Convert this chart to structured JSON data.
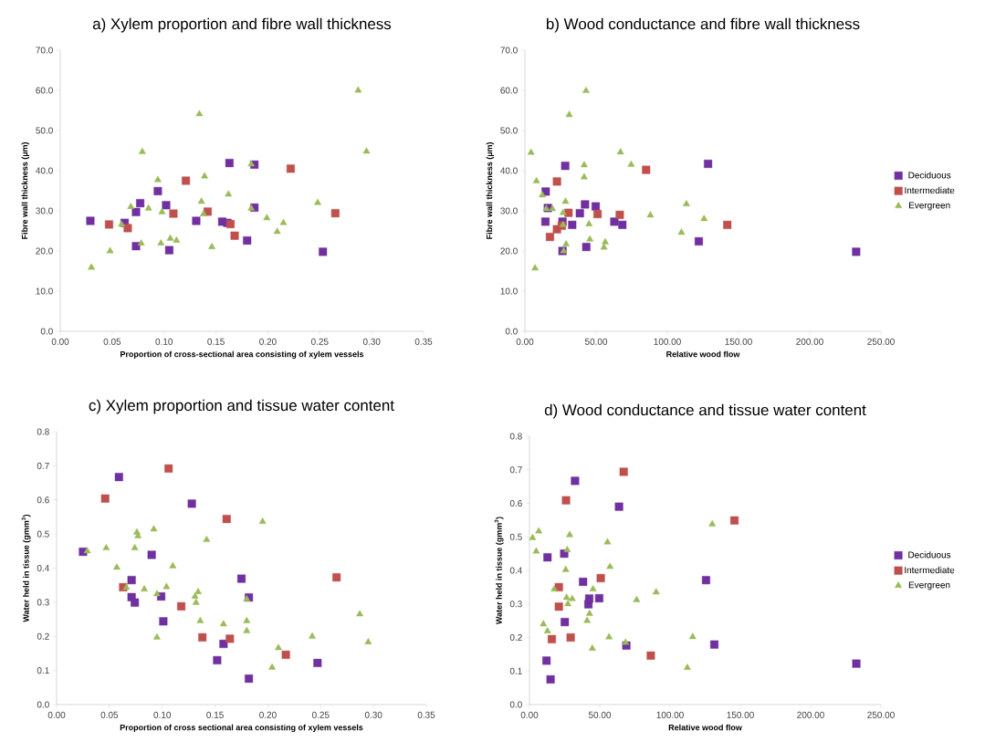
{
  "chart_data": [
    {
      "type": "scatter",
      "title": "a) Xylem proportion and fibre wall thickness",
      "xlabel": "Proportion of cross-sectional area consisting of xylem vessels",
      "ylabel": "Fibre wall thickness (µm)",
      "xlim": [
        0,
        0.35
      ],
      "ylim": [
        0,
        70
      ],
      "xticks": [
        {
          "value": 0,
          "label": "0.00"
        },
        {
          "value": 0.05,
          "label": "0.05"
        },
        {
          "value": 0.1,
          "label": "0.10"
        },
        {
          "value": 0.15,
          "label": "0.15"
        },
        {
          "value": 0.2,
          "label": "0.20"
        },
        {
          "value": 0.25,
          "label": "0.25"
        },
        {
          "value": 0.3,
          "label": "0.30"
        },
        {
          "value": 0.35,
          "label": "0.35"
        }
      ],
      "yticks": [
        {
          "value": 0,
          "label": "0.0"
        },
        {
          "value": 10,
          "label": "10.0"
        },
        {
          "value": 20,
          "label": "20.0"
        },
        {
          "value": 30,
          "label": "30.0"
        },
        {
          "value": 40,
          "label": "40.0"
        },
        {
          "value": 50,
          "label": "50.0"
        },
        {
          "value": 60,
          "label": "60.0"
        },
        {
          "value": 70,
          "label": "70.0"
        }
      ],
      "series": [
        {
          "color": "#7030a0",
          "marker": "square",
          "x": [
            0.029,
            0.062,
            0.073,
            0.077,
            0.073,
            0.094,
            0.102,
            0.105,
            0.131,
            0.156,
            0.163,
            0.161,
            0.18,
            0.187,
            0.187,
            0.253
          ],
          "values": [
            27.5,
            27.0,
            29.7,
            31.9,
            21.2,
            34.9,
            31.4,
            20.2,
            27.5,
            27.3,
            41.9,
            27.0,
            22.6,
            41.5,
            30.8,
            19.8
          ]
        },
        {
          "color": "#c0504d",
          "marker": "square",
          "x": [
            0.047,
            0.065,
            0.121,
            0.109,
            0.142,
            0.164,
            0.168,
            0.222,
            0.265
          ],
          "values": [
            26.6,
            25.7,
            37.5,
            29.3,
            29.8,
            26.7,
            23.8,
            40.5,
            29.4
          ]
        },
        {
          "color": "#9bbb59",
          "marker": "triangle",
          "x": [
            0.03,
            0.048,
            0.059,
            0.068,
            0.079,
            0.078,
            0.085,
            0.094,
            0.097,
            0.098,
            0.106,
            0.112,
            0.134,
            0.136,
            0.139,
            0.138,
            0.146,
            0.162,
            0.184,
            0.184,
            0.199,
            0.209,
            0.215,
            0.248,
            0.287,
            0.295
          ],
          "values": [
            15.9,
            20.0,
            26.6,
            31.0,
            44.7,
            21.9,
            30.6,
            37.7,
            21.9,
            29.7,
            23.1,
            22.6,
            54.1,
            32.3,
            38.6,
            29.2,
            21.0,
            34.1,
            41.6,
            30.6,
            28.2,
            24.8,
            27.0,
            32.0,
            60.0,
            44.8
          ]
        }
      ]
    },
    {
      "type": "scatter",
      "title": "b) Wood conductance and fibre wall thickness",
      "xlabel": "Relative wood flow",
      "ylabel": "Fibre wall thickness (µm)",
      "legend": "right",
      "xlim": [
        0,
        250
      ],
      "ylim": [
        0,
        70
      ],
      "xticks": [
        {
          "value": 0,
          "label": "0.00"
        },
        {
          "value": 50,
          "label": "50.00"
        },
        {
          "value": 100,
          "label": "100.00"
        },
        {
          "value": 150,
          "label": "150.00"
        },
        {
          "value": 200,
          "label": "200.00"
        },
        {
          "value": 250,
          "label": "250.00"
        }
      ],
      "yticks": [
        {
          "value": 0,
          "label": "0.0"
        },
        {
          "value": 10,
          "label": "10.0"
        },
        {
          "value": 20,
          "label": "20.0"
        },
        {
          "value": 30,
          "label": "30.0"
        },
        {
          "value": 40,
          "label": "40.0"
        },
        {
          "value": 50,
          "label": "50.0"
        },
        {
          "value": 60,
          "label": "60.0"
        },
        {
          "value": 70,
          "label": "70.0"
        }
      ],
      "series": [
        {
          "name": "Deciduous",
          "color": "#7030a0",
          "marker": "square",
          "x": [
            14.4,
            14.6,
            16.1,
            28.3,
            26.4,
            26.4,
            33.2,
            38.6,
            42.2,
            43.1,
            49.7,
            62.8,
            68.4,
            122.1,
            128.6,
            232.6
          ],
          "values": [
            27.3,
            34.8,
            30.7,
            41.2,
            20.0,
            27.3,
            26.5,
            29.4,
            31.6,
            21.0,
            31.1,
            27.3,
            26.5,
            22.4,
            41.7,
            19.8
          ]
        },
        {
          "name": "Intermediate",
          "color": "#c0504d",
          "marker": "square",
          "x": [
            17.6,
            22.5,
            22.5,
            25.9,
            30.6,
            51.0,
            66.6,
            85.1,
            142.1
          ],
          "values": [
            23.5,
            25.4,
            37.3,
            26.3,
            29.5,
            29.2,
            29.0,
            40.2,
            26.5
          ]
        },
        {
          "name": "Evergreen",
          "color": "#9bbb59",
          "marker": "triangle",
          "x": [
            4.3,
            7.1,
            8.1,
            12.2,
            15.0,
            19.3,
            26.8,
            26.8,
            27.2,
            28.9,
            28.5,
            31.1,
            42.9,
            41.6,
            41.6,
            45.0,
            45.6,
            55.5,
            56.4,
            67.1,
            74.6,
            88.1,
            109.9,
            113.4,
            125.8
          ],
          "values": [
            44.5,
            15.7,
            37.4,
            33.9,
            30.5,
            30.5,
            29.5,
            26.5,
            20.0,
            21.7,
            32.3,
            53.9,
            59.9,
            41.4,
            38.4,
            26.7,
            22.9,
            20.9,
            22.2,
            44.6,
            41.5,
            28.9,
            24.6,
            31.7,
            28.0
          ]
        }
      ]
    },
    {
      "type": "scatter",
      "title": "c) Xylem proportion and tissue water content",
      "xlabel": "Proportion of cross sectional area consisting of xylem vessels",
      "ylabel": "Water held in tissue (gmm$^{3}$)",
      "xlim": [
        0,
        0.35
      ],
      "ylim": [
        0,
        0.8
      ],
      "xticks": [
        {
          "value": 0,
          "label": "0.00"
        },
        {
          "value": 0.05,
          "label": "0.05"
        },
        {
          "value": 0.1,
          "label": "0.10"
        },
        {
          "value": 0.15,
          "label": "0.15"
        },
        {
          "value": 0.2,
          "label": "0.20"
        },
        {
          "value": 0.25,
          "label": "0.25"
        },
        {
          "value": 0.3,
          "label": "0.30"
        },
        {
          "value": 0.35,
          "label": "0.35"
        }
      ],
      "yticks": [
        {
          "value": 0,
          "label": "0.0"
        },
        {
          "value": 0.1,
          "label": "0.1"
        },
        {
          "value": 0.2,
          "label": "0.2"
        },
        {
          "value": 0.3,
          "label": "0.3"
        },
        {
          "value": 0.4,
          "label": "0.4"
        },
        {
          "value": 0.5,
          "label": "0.5"
        },
        {
          "value": 0.6,
          "label": "0.6"
        },
        {
          "value": 0.7,
          "label": "0.7"
        },
        {
          "value": 0.8,
          "label": "0.8"
        }
      ],
      "series": [
        {
          "color": "#7030a0",
          "marker": "square",
          "x": [
            0.025,
            0.059,
            0.071,
            0.071,
            0.074,
            0.09,
            0.099,
            0.101,
            0.128,
            0.152,
            0.158,
            0.175,
            0.182,
            0.182,
            0.247
          ],
          "values": [
            0.448,
            0.667,
            0.365,
            0.315,
            0.299,
            0.439,
            0.317,
            0.244,
            0.589,
            0.13,
            0.178,
            0.369,
            0.314,
            0.076,
            0.122
          ]
        },
        {
          "color": "#c0504d",
          "marker": "square",
          "x": [
            0.046,
            0.063,
            0.106,
            0.118,
            0.138,
            0.161,
            0.164,
            0.217,
            0.265
          ],
          "values": [
            0.604,
            0.344,
            0.692,
            0.288,
            0.197,
            0.544,
            0.193,
            0.146,
            0.373
          ]
        },
        {
          "color": "#9bbb59",
          "marker": "triangle",
          "x": [
            0.029,
            0.047,
            0.057,
            0.066,
            0.076,
            0.077,
            0.074,
            0.083,
            0.092,
            0.095,
            0.095,
            0.104,
            0.11,
            0.134,
            0.132,
            0.131,
            0.136,
            0.142,
            0.158,
            0.18,
            0.18,
            0.18,
            0.195,
            0.204,
            0.21,
            0.242,
            0.287,
            0.295
          ],
          "values": [
            0.45,
            0.459,
            0.402,
            0.343,
            0.505,
            0.494,
            0.459,
            0.338,
            0.514,
            0.324,
            0.197,
            0.345,
            0.406,
            0.33,
            0.299,
            0.317,
            0.245,
            0.483,
            0.236,
            0.309,
            0.245,
            0.216,
            0.536,
            0.109,
            0.166,
            0.2,
            0.265,
            0.183
          ]
        }
      ]
    },
    {
      "type": "scatter",
      "title": "d) Wood conductance and tissue water content",
      "xlabel": "Relative wood flow",
      "ylabel": "Water held in tissue (gmm$^{3}$)",
      "legend": "right",
      "xlim": [
        0,
        250
      ],
      "ylim": [
        0,
        0.8
      ],
      "xticks": [
        {
          "value": 0,
          "label": "0.00"
        },
        {
          "value": 50,
          "label": "50.00"
        },
        {
          "value": 100,
          "label": "100.00"
        },
        {
          "value": 150,
          "label": "150.00"
        },
        {
          "value": 200,
          "label": "200.00"
        },
        {
          "value": 250,
          "label": "250.00"
        }
      ],
      "yticks": [
        {
          "value": 0,
          "label": "0.0"
        },
        {
          "value": 0.1,
          "label": "0.1"
        },
        {
          "value": 0.2,
          "label": "0.2"
        },
        {
          "value": 0.3,
          "label": "0.3"
        },
        {
          "value": 0.4,
          "label": "0.4"
        },
        {
          "value": 0.5,
          "label": "0.5"
        },
        {
          "value": 0.6,
          "label": "0.6"
        },
        {
          "value": 0.7,
          "label": "0.7"
        },
        {
          "value": 0.8,
          "label": "0.8"
        }
      ],
      "series": [
        {
          "name": "Deciduous",
          "color": "#7030a0",
          "marker": "square",
          "x": [
            12.8,
            12.1,
            15.0,
            24.7,
            25.1,
            27.5,
            32.4,
            38.1,
            41.9,
            42.5,
            49.6,
            63.7,
            68.9,
            125.6,
            131.5,
            232.5
          ],
          "values": [
            0.439,
            0.131,
            0.075,
            0.45,
            0.246,
            null,
            0.667,
            0.366,
            0.299,
            0.316,
            0.317,
            0.59,
            0.176,
            0.371,
            0.179,
            0.122
          ]
        },
        {
          "name": "Intermediate",
          "color": "#c0504d",
          "marker": "square",
          "x": [
            15.9,
            20.9,
            20.9,
            26.0,
            29.3,
            50.7,
            67.0,
            86.3,
            145.8
          ],
          "values": [
            0.195,
            0.35,
            0.292,
            0.609,
            0.2,
            0.377,
            0.694,
            0.146,
            0.549
          ]
        },
        {
          "name": "Evergreen",
          "color": "#9bbb59",
          "marker": "triangle",
          "x": [
            2.2,
            6.6,
            4.8,
            9.9,
            12.8,
            17.6,
            25.8,
            26.9,
            28.6,
            26.4,
            27.3,
            30.4,
            41.0,
            42.7,
            45.2,
            44.7,
            55.5,
            56.6,
            57.3,
            68.3,
            76.2,
            90.1,
            112.3,
            116.1,
            130.0
          ],
          "values": [
            0.497,
            0.517,
            0.457,
            0.24,
            0.219,
            0.344,
            0.402,
            0.461,
            0.506,
            0.319,
            0.3,
            0.315,
            0.25,
            0.271,
            0.344,
            0.167,
            0.484,
            0.201,
            0.411,
            0.185,
            0.312,
            0.335,
            0.11,
            0.202,
            0.538
          ]
        }
      ]
    }
  ]
}
